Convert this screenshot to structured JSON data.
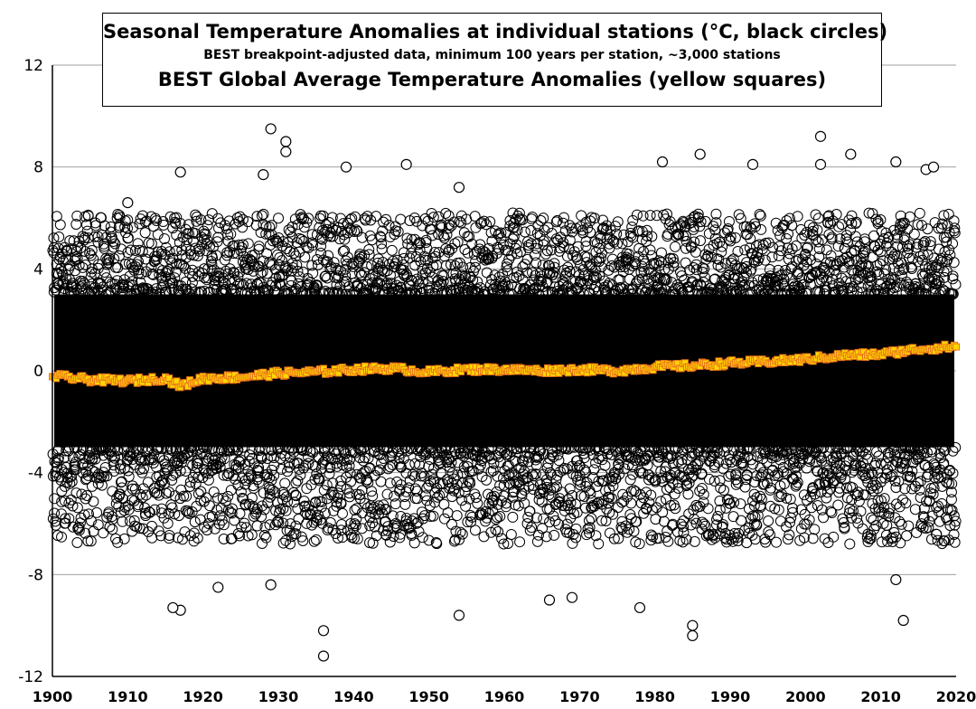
{
  "chart_data": {
    "type": "scatter",
    "title_lines": [
      "Seasonal Temperature Anomalies at individual stations (°C, black circles)",
      "BEST breakpoint-adjusted data, minimum 100 years per station, ~3,000 stations",
      "BEST Global Average Temperature Anomalies (yellow squares)"
    ],
    "xlabel": "",
    "ylabel": "",
    "xlim": [
      1900,
      2020
    ],
    "ylim": [
      -12,
      12
    ],
    "x_ticks": [
      "1900",
      "1910",
      "1920",
      "1930",
      "1940",
      "1950",
      "1960",
      "1970",
      "1980",
      "1990",
      "2000",
      "2010",
      "2020"
    ],
    "y_ticks": [
      "12",
      "8",
      "4",
      "0",
      "-4",
      "-8",
      "-12"
    ],
    "grid": "horizontal",
    "series": [
      {
        "marker": "open-circle",
        "color": "#000000",
        "core_band": [
          -3,
          3
        ],
        "outliers_high": [
          {
            "x": 1929,
            "y": 9.5
          },
          {
            "x": 1931,
            "y": 9.0
          },
          {
            "x": 1931,
            "y": 8.6
          },
          {
            "x": 1939,
            "y": 8.0
          },
          {
            "x": 1947,
            "y": 8.1
          },
          {
            "x": 1917,
            "y": 7.8
          },
          {
            "x": 1928,
            "y": 7.7
          },
          {
            "x": 1981,
            "y": 8.2
          },
          {
            "x": 1986,
            "y": 8.5
          },
          {
            "x": 1993,
            "y": 8.1
          },
          {
            "x": 2002,
            "y": 9.2
          },
          {
            "x": 2002,
            "y": 8.1
          },
          {
            "x": 2006,
            "y": 8.5
          },
          {
            "x": 2012,
            "y": 8.2
          },
          {
            "x": 2016,
            "y": 7.9
          },
          {
            "x": 2017,
            "y": 8.0
          },
          {
            "x": 1910,
            "y": 6.6
          },
          {
            "x": 1954,
            "y": 7.2
          }
        ],
        "outliers_low": [
          {
            "x": 1936,
            "y": -11.2
          },
          {
            "x": 1936,
            "y": -10.2
          },
          {
            "x": 1985,
            "y": -10.4
          },
          {
            "x": 1985,
            "y": -10.0
          },
          {
            "x": 2013,
            "y": -9.8
          },
          {
            "x": 1917,
            "y": -9.4
          },
          {
            "x": 1916,
            "y": -9.3
          },
          {
            "x": 1954,
            "y": -9.6
          },
          {
            "x": 1978,
            "y": -9.3
          },
          {
            "x": 1966,
            "y": -9.0
          },
          {
            "x": 1969,
            "y": -8.9
          },
          {
            "x": 2012,
            "y": -8.2
          },
          {
            "x": 1922,
            "y": -8.5
          },
          {
            "x": 1929,
            "y": -8.4
          }
        ]
      },
      {
        "marker": "filled-square",
        "color": "#ffd700",
        "edge_color": "#e8701a",
        "x": [
          1900,
          1905,
          1910,
          1915,
          1917,
          1920,
          1925,
          1930,
          1935,
          1940,
          1945,
          1950,
          1955,
          1960,
          1965,
          1970,
          1975,
          1980,
          1985,
          1990,
          1995,
          2000,
          2005,
          2010,
          2015,
          2020
        ],
        "y": [
          -0.2,
          -0.35,
          -0.4,
          -0.3,
          -0.6,
          -0.3,
          -0.25,
          -0.1,
          -0.05,
          0.05,
          0.1,
          -0.05,
          0.05,
          0.05,
          0.0,
          0.05,
          0.0,
          0.15,
          0.2,
          0.3,
          0.35,
          0.45,
          0.6,
          0.65,
          0.85,
          0.95
        ]
      }
    ]
  }
}
